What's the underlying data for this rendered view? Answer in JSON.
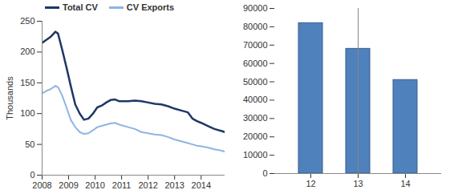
{
  "chart_data": [
    {
      "type": "line",
      "ylabel": "Thousands",
      "x": [
        2008.0,
        2008.17,
        2008.33,
        2008.5,
        2008.6,
        2008.75,
        2008.92,
        2009.08,
        2009.25,
        2009.42,
        2009.58,
        2009.75,
        2009.92,
        2010.08,
        2010.25,
        2010.42,
        2010.58,
        2010.75,
        2010.92,
        2011.25,
        2011.5,
        2011.75,
        2012.0,
        2012.25,
        2012.5,
        2012.75,
        2013.0,
        2013.25,
        2013.5,
        2013.67,
        2013.83,
        2014.0,
        2014.25,
        2014.5,
        2014.75,
        2014.9
      ],
      "series": [
        {
          "name": "Total CV",
          "color": "#1f3864",
          "values": [
            215,
            220,
            225,
            233,
            230,
            205,
            175,
            145,
            115,
            100,
            90,
            92,
            100,
            110,
            113,
            118,
            122,
            123,
            120,
            120,
            121,
            120,
            118,
            116,
            115,
            112,
            108,
            105,
            102,
            92,
            88,
            85,
            80,
            75,
            72,
            70
          ]
        },
        {
          "name": "CV Exports",
          "color": "#8eb4e3",
          "values": [
            133,
            137,
            140,
            145,
            143,
            130,
            110,
            90,
            78,
            70,
            67,
            68,
            73,
            78,
            80,
            82,
            84,
            85,
            82,
            78,
            75,
            70,
            68,
            66,
            65,
            62,
            58,
            55,
            52,
            50,
            48,
            47,
            45,
            42,
            40,
            38
          ]
        }
      ],
      "xlim": [
        2008,
        2014.9
      ],
      "xticks": [
        2008,
        2009,
        2010,
        2011,
        2012,
        2013,
        2014
      ],
      "ylim": [
        0,
        250
      ],
      "yticks": [
        0,
        50,
        100,
        150,
        200,
        250
      ],
      "legend": "top",
      "grid": false
    },
    {
      "type": "bar",
      "categories": [
        "12",
        "13",
        "14"
      ],
      "values": [
        82000,
        68000,
        51000
      ],
      "color": "#4f81bd",
      "ylim": [
        0,
        90000
      ],
      "yticks": [
        0,
        10000,
        20000,
        30000,
        40000,
        50000,
        60000,
        70000,
        80000,
        90000
      ],
      "grid": false
    }
  ]
}
